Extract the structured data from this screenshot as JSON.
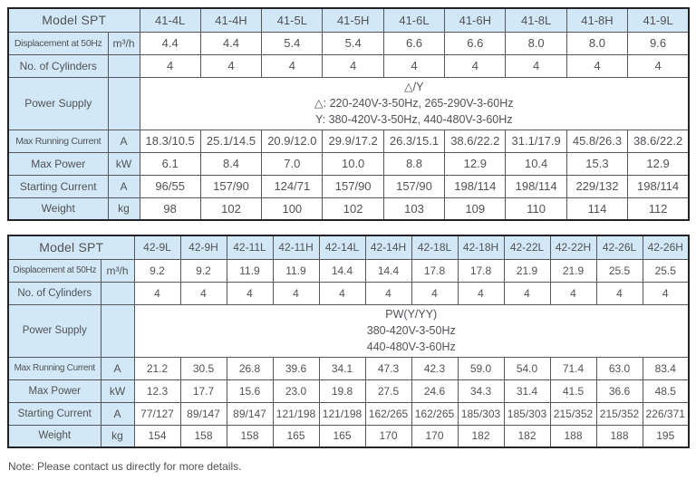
{
  "note": "Note: Please contact us directly for more details.",
  "colors": {
    "header_fill": "#d2e8f7",
    "inner_border": "#55575c",
    "outer_border": "#222326",
    "text": "#505256"
  },
  "tables": [
    {
      "id": "spt41",
      "header_label": "Model SPT",
      "models": [
        "41-4L",
        "41-4H",
        "41-5L",
        "41-5H",
        "41-6L",
        "41-6H",
        "41-8L",
        "41-8H",
        "41-9L"
      ],
      "rows": [
        {
          "label": "Displacement at 50Hz",
          "unit": "m³/h",
          "values": [
            "4.4",
            "4.4",
            "5.4",
            "5.4",
            "6.6",
            "6.6",
            "8.0",
            "8.0",
            "9.6"
          ]
        },
        {
          "label": "No. of Cylinders",
          "unit": "",
          "values": [
            "4",
            "4",
            "4",
            "4",
            "4",
            "4",
            "4",
            "4",
            "4"
          ]
        },
        {
          "label": "Power Supply",
          "unit": "",
          "merged_lines": [
            "△/Y",
            "△: 220-240V-3-50Hz, 265-290V-3-60Hz",
            "Y: 380-420V-3-50Hz, 440-480V-3-60Hz"
          ]
        },
        {
          "label": "Max Running Current",
          "unit": "A",
          "values": [
            "18.3/10.5",
            "25.1/14.5",
            "20.9/12.0",
            "29.9/17.2",
            "26.3/15.1",
            "38.6/22.2",
            "31.1/17.9",
            "45.8/26.3",
            "38.6/22.2"
          ]
        },
        {
          "label": "Max Power",
          "unit": "kW",
          "values": [
            "6.1",
            "8.4",
            "7.0",
            "10.0",
            "8.8",
            "12.9",
            "10.4",
            "15.3",
            "12.9"
          ]
        },
        {
          "label": "Starting Current",
          "unit": "A",
          "values": [
            "96/55",
            "157/90",
            "124/71",
            "157/90",
            "157/90",
            "198/114",
            "198/114",
            "229/132",
            "198/114"
          ]
        },
        {
          "label": "Weight",
          "unit": "kg",
          "values": [
            "98",
            "102",
            "100",
            "102",
            "103",
            "109",
            "110",
            "114",
            "112"
          ]
        }
      ]
    },
    {
      "id": "spt42",
      "header_label": "Model SPT",
      "models": [
        "42-9L",
        "42-9H",
        "42-11L",
        "42-11H",
        "42-14L",
        "42-14H",
        "42-18L",
        "42-18H",
        "42-22L",
        "42-22H",
        "42-26L",
        "42-26H"
      ],
      "rows": [
        {
          "label": "Displacement at 50Hz",
          "unit": "m³/h",
          "values": [
            "9.2",
            "9.2",
            "11.9",
            "11.9",
            "14.4",
            "14.4",
            "17.8",
            "17.8",
            "21.9",
            "21.9",
            "25.5",
            "25.5"
          ]
        },
        {
          "label": "No. of Cylinders",
          "unit": "",
          "values": [
            "4",
            "4",
            "4",
            "4",
            "4",
            "4",
            "4",
            "4",
            "4",
            "4",
            "4",
            "4"
          ]
        },
        {
          "label": "Power Supply",
          "unit": "",
          "merged_lines": [
            "PW(Y/YY)",
            "380-420V-3-50Hz",
            "440-480V-3-60Hz"
          ]
        },
        {
          "label": "Max Running Current",
          "unit": "A",
          "values": [
            "21.2",
            "30.5",
            "26.8",
            "39.6",
            "34.1",
            "47.3",
            "42.3",
            "59.0",
            "54.0",
            "71.4",
            "63.0",
            "83.4"
          ]
        },
        {
          "label": "Max Power",
          "unit": "kW",
          "values": [
            "12.3",
            "17.7",
            "15.6",
            "23.0",
            "19.8",
            "27.5",
            "24.6",
            "34.3",
            "31.4",
            "41.5",
            "36.6",
            "48.5"
          ]
        },
        {
          "label": "Starting Current",
          "unit": "A",
          "values": [
            "77/127",
            "89/147",
            "89/147",
            "121/198",
            "121/198",
            "162/265",
            "162/265",
            "185/303",
            "185/303",
            "215/352",
            "215/352",
            "226/371"
          ]
        },
        {
          "label": "Weight",
          "unit": "kg",
          "values": [
            "154",
            "158",
            "158",
            "165",
            "165",
            "170",
            "170",
            "182",
            "182",
            "188",
            "188",
            "195"
          ]
        }
      ]
    }
  ]
}
